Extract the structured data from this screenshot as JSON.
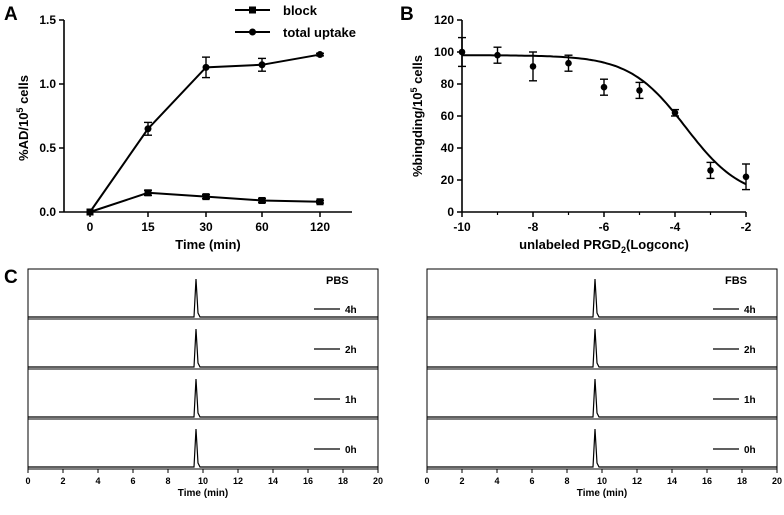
{
  "chart_data": [
    {
      "panel": "A",
      "type": "line",
      "xlabel": "Time (min)",
      "ylabel_main": "%AD/10",
      "ylabel_sup": "5",
      "ylabel_tail": " cells",
      "categories": [
        "0",
        "15",
        "30",
        "60",
        "120"
      ],
      "ylim": [
        0,
        1.5
      ],
      "yticks": [
        "0.0",
        "0.5",
        "1.0",
        "1.5"
      ],
      "series": [
        {
          "name": "block",
          "marker": "square",
          "values": [
            0.0,
            0.15,
            0.12,
            0.09,
            0.08
          ],
          "err": [
            0.0,
            0.02,
            0.015,
            0.015,
            0.01
          ]
        },
        {
          "name": "total uptake",
          "marker": "circle",
          "values": [
            0.0,
            0.65,
            1.13,
            1.15,
            1.23
          ],
          "err": [
            0.0,
            0.05,
            0.08,
            0.05,
            0.01
          ]
        }
      ],
      "grid": false,
      "legend": "top-right"
    },
    {
      "panel": "B",
      "type": "scatter",
      "xlabel_main": "unlabeled PRGD",
      "xlabel_sub": "2",
      "xlabel_tail": "(Logconc)",
      "ylabel_main": "%bingding/10",
      "ylabel_sup": "5",
      "ylabel_tail": " cells",
      "xlim": [
        -10,
        -2
      ],
      "ylim": [
        0,
        120
      ],
      "xticks": [
        "-10",
        "-8",
        "-6",
        "-4",
        "-2"
      ],
      "yticks": [
        "0",
        "20",
        "40",
        "60",
        "80",
        "100",
        "120"
      ],
      "points": [
        {
          "x": -10,
          "y": 100,
          "err": 9
        },
        {
          "x": -9,
          "y": 98,
          "err": 5
        },
        {
          "x": -8,
          "y": 91,
          "err": 9
        },
        {
          "x": -7,
          "y": 93,
          "err": 5
        },
        {
          "x": -6,
          "y": 78,
          "err": 5
        },
        {
          "x": -5,
          "y": 76,
          "err": 5
        },
        {
          "x": -4,
          "y": 62,
          "err": 2
        },
        {
          "x": -3,
          "y": 26,
          "err": 5
        },
        {
          "x": -2,
          "y": 22,
          "err": 8
        }
      ],
      "fit": {
        "model": "sigmoid",
        "top": 98,
        "bottom": 8,
        "logIC50": -3.7,
        "hill": 0.55
      },
      "grid": false
    },
    {
      "panel": "C",
      "type": "line",
      "subpanels": [
        {
          "condition": "PBS",
          "traces": [
            "4h",
            "2h",
            "1h",
            "0h"
          ],
          "peak_x": 9.6,
          "xlabel": "Time (min)"
        },
        {
          "condition": "FBS",
          "traces": [
            "4h",
            "2h",
            "1h",
            "0h"
          ],
          "peak_x": 9.6,
          "xlabel": "Time (min)"
        }
      ],
      "xlim": [
        0,
        20
      ],
      "xticks": [
        "0",
        "2",
        "4",
        "6",
        "8",
        "10",
        "12",
        "14",
        "16",
        "18",
        "20"
      ]
    }
  ]
}
